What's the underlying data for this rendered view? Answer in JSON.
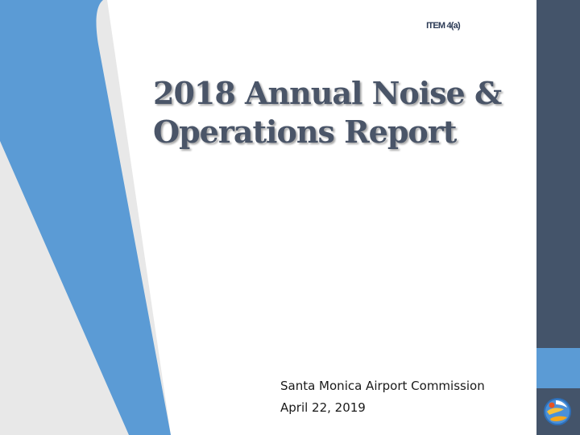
{
  "slide": {
    "item_tag": "ITEM 4(a)",
    "title_line1": "2018  Annual Noise &",
    "title_line2": "Operations Report",
    "subtitle_line1": "Santa Monica Airport Commission",
    "subtitle_line2": "April 22, 2019"
  },
  "colors": {
    "accent_blue": "#5b9bd5",
    "sidebar_navy": "#44546a",
    "title_gray": "#4a5568",
    "background_gray": "#e8e8e8"
  },
  "icons": {
    "logo": "santa-monica-airport-logo"
  }
}
